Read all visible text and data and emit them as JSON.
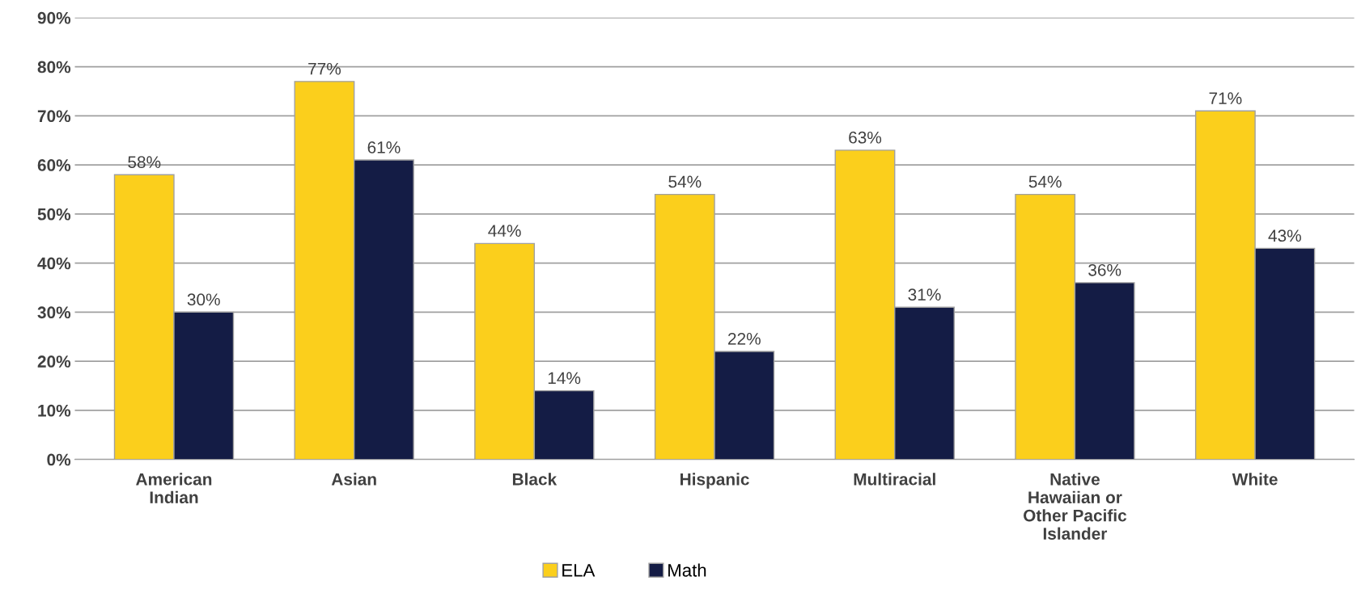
{
  "chart_data": {
    "type": "bar",
    "categories": [
      "American\nIndian",
      "Asian",
      "Black",
      "Hispanic",
      "Multiracial",
      "Native\nHawaiian or\nOther Pacific\nIslander",
      "White"
    ],
    "series": [
      {
        "name": "ELA",
        "color": "#fbcf1c",
        "values": [
          58,
          77,
          44,
          54,
          63,
          54,
          71
        ],
        "value_labels": [
          "58%",
          "77%",
          "44%",
          "54%",
          "63%",
          "54%",
          "71%"
        ]
      },
      {
        "name": "Math",
        "color": "#141c45",
        "values": [
          30,
          61,
          14,
          22,
          31,
          36,
          43
        ],
        "value_labels": [
          "30%",
          "61%",
          "14%",
          "22%",
          "31%",
          "36%",
          "43%"
        ]
      }
    ],
    "ylim": [
      0,
      90
    ],
    "yticks": [
      {
        "value": 0,
        "label": "0%"
      },
      {
        "value": 10,
        "label": "10%"
      },
      {
        "value": 20,
        "label": "20%"
      },
      {
        "value": 30,
        "label": "30%"
      },
      {
        "value": 40,
        "label": "40%"
      },
      {
        "value": 50,
        "label": "50%"
      },
      {
        "value": 60,
        "label": "60%"
      },
      {
        "value": 70,
        "label": "70%"
      },
      {
        "value": 80,
        "label": "80%"
      },
      {
        "value": 90,
        "label": "90%"
      }
    ],
    "grid": "y",
    "legend": "bottom"
  }
}
